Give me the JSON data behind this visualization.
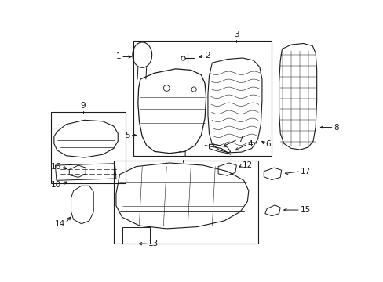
{
  "bg_color": "#ffffff",
  "line_color": "#1a1a1a",
  "fs": 7.5,
  "fig_w": 4.89,
  "fig_h": 3.6,
  "dpi": 100
}
